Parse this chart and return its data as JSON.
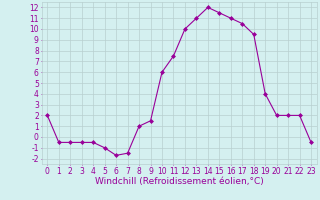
{
  "x": [
    0,
    1,
    2,
    3,
    4,
    5,
    6,
    7,
    8,
    9,
    10,
    11,
    12,
    13,
    14,
    15,
    16,
    17,
    18,
    19,
    20,
    21,
    22,
    23
  ],
  "y": [
    2.0,
    -0.5,
    -0.5,
    -0.5,
    -0.5,
    -1.0,
    -1.7,
    -1.5,
    1.0,
    1.5,
    6.0,
    7.5,
    10.0,
    11.0,
    12.0,
    11.5,
    11.0,
    10.5,
    9.5,
    4.0,
    2.0,
    2.0,
    2.0,
    -0.5
  ],
  "line_color": "#990099",
  "marker": "D",
  "marker_size": 2,
  "bg_color": "#d4f0f0",
  "grid_color": "#b8d0d0",
  "xlabel": "Windchill (Refroidissement éolien,°C)",
  "xlim": [
    -0.5,
    23.5
  ],
  "ylim": [
    -2.5,
    12.5
  ],
  "xticks": [
    0,
    1,
    2,
    3,
    4,
    5,
    6,
    7,
    8,
    9,
    10,
    11,
    12,
    13,
    14,
    15,
    16,
    17,
    18,
    19,
    20,
    21,
    22,
    23
  ],
  "yticks": [
    -2,
    -1,
    0,
    1,
    2,
    3,
    4,
    5,
    6,
    7,
    8,
    9,
    10,
    11,
    12
  ],
  "tick_label_size": 5.5,
  "xlabel_size": 6.5
}
